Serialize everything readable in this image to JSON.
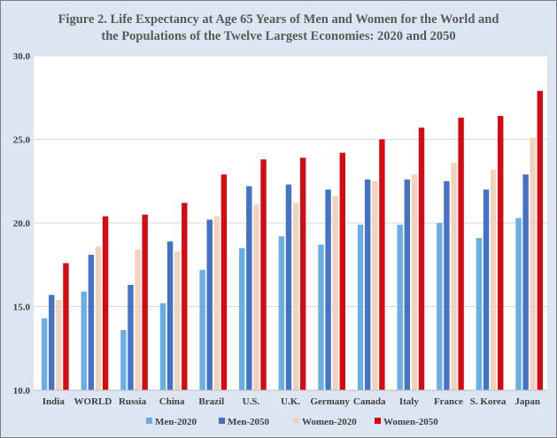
{
  "chart_data": {
    "type": "bar",
    "title_lines": [
      "Figure 2.  Life Expectancy at Age 65 Years of Men and Women for the World and",
      "the Populations of the Twelve Largest Economies: 2020 and 2050"
    ],
    "categories": [
      "India",
      "WORLD",
      "Russia",
      "China",
      "Brazil",
      "U.S.",
      "U.K.",
      "Germany",
      "Canada",
      "Italy",
      "France",
      "S. Korea",
      "Japan"
    ],
    "series": [
      {
        "name": "Men-2020",
        "color": "#6aaee6",
        "values": [
          14.3,
          15.9,
          13.6,
          15.2,
          17.2,
          18.5,
          19.2,
          18.7,
          19.9,
          19.9,
          20.0,
          19.1,
          20.3
        ]
      },
      {
        "name": "Men-2050",
        "color": "#4472c4",
        "values": [
          15.7,
          18.1,
          16.3,
          18.9,
          20.2,
          22.2,
          22.3,
          22.0,
          22.6,
          22.6,
          22.5,
          22.0,
          22.9
        ]
      },
      {
        "name": "Women-2020",
        "color": "#f1d3bd",
        "values": [
          15.4,
          18.6,
          18.4,
          18.3,
          20.4,
          21.1,
          21.2,
          21.6,
          22.5,
          22.9,
          23.6,
          23.2,
          25.1
        ]
      },
      {
        "name": "Women-2050",
        "color": "#d40b12",
        "values": [
          17.6,
          20.4,
          20.5,
          21.2,
          22.9,
          23.8,
          23.9,
          24.2,
          25.0,
          25.7,
          26.3,
          26.4,
          27.9
        ]
      }
    ],
    "ylim": [
      10.0,
      30.0
    ],
    "yticks": [
      "10.0",
      "15.0",
      "20.0",
      "25.0",
      "30.0"
    ],
    "grid": true,
    "legend_position": "bottom"
  }
}
